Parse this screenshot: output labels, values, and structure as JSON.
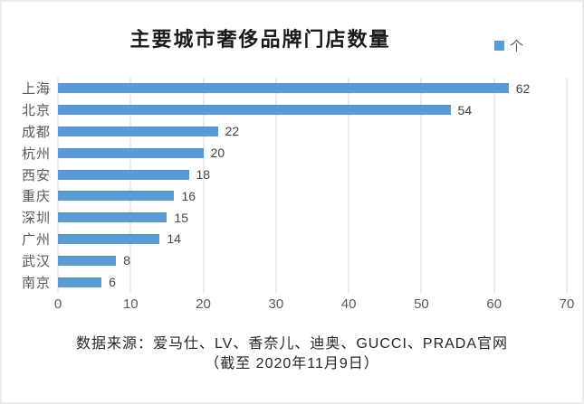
{
  "title": "主要城市奢侈品牌门店数量",
  "legend": {
    "label": "个",
    "color": "#5b9bd5"
  },
  "chart_data": {
    "type": "bar",
    "orientation": "horizontal",
    "title": "主要城市奢侈品牌门店数量",
    "categories": [
      "上海",
      "北京",
      "成都",
      "杭州",
      "西安",
      "重庆",
      "深圳",
      "广州",
      "武汉",
      "南京"
    ],
    "values": [
      62,
      54,
      22,
      20,
      18,
      16,
      15,
      14,
      8,
      6
    ],
    "series_name": "个",
    "xlabel": "",
    "ylabel": "",
    "xlim": [
      0,
      70
    ],
    "xticks": [
      0,
      10,
      20,
      30,
      40,
      50,
      60,
      70
    ],
    "grid": true,
    "legend_position": "top-right",
    "bar_color": "#5b9bd5",
    "data_labels": true
  },
  "footer": {
    "line1": "数据来源：爱马仕、LV、香奈儿、迪奥、GUCCI、PRADA官网",
    "line2": "（截至 2020年11月9日）"
  }
}
